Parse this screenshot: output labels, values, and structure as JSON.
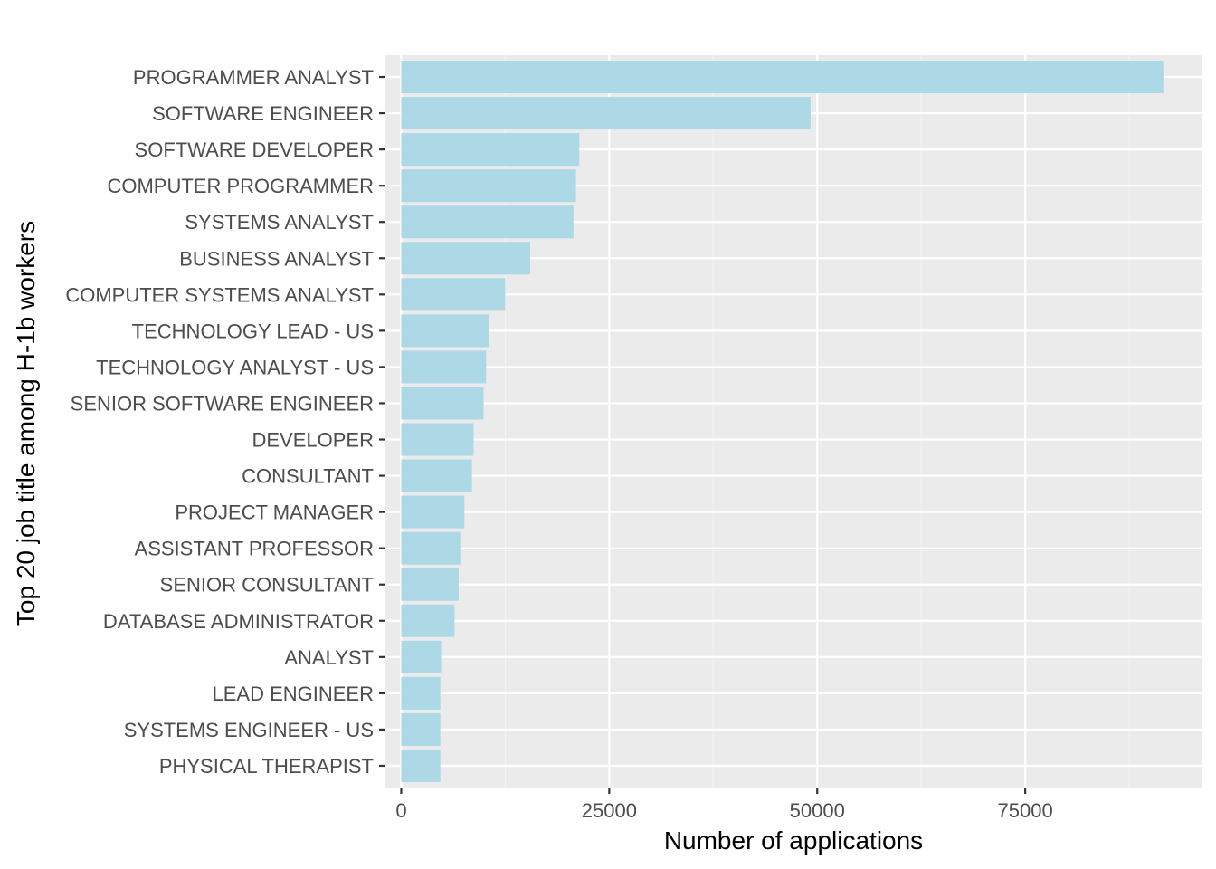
{
  "chart_data": {
    "type": "bar",
    "orientation": "horizontal",
    "title": "",
    "xlabel": "Number of applications",
    "ylabel": "Top 20 job title among H-1b workers",
    "xlim": [
      -1900,
      96300
    ],
    "x_ticks": [
      0,
      25000,
      50000,
      75000
    ],
    "x_tick_labels": [
      "0",
      "25000",
      "50000",
      "75000"
    ],
    "grid": true,
    "legend": "none",
    "categories": [
      "PROGRAMMER ANALYST",
      "SOFTWARE ENGINEER",
      "SOFTWARE DEVELOPER",
      "COMPUTER PROGRAMMER",
      "SYSTEMS ANALYST",
      "BUSINESS ANALYST",
      "COMPUTER SYSTEMS ANALYST",
      "TECHNOLOGY LEAD - US",
      "TECHNOLOGY ANALYST - US",
      "SENIOR SOFTWARE ENGINEER",
      "DEVELOPER",
      "CONSULTANT",
      "PROJECT MANAGER",
      "ASSISTANT PROFESSOR",
      "SENIOR CONSULTANT",
      "DATABASE ADMINISTRATOR",
      "ANALYST",
      "LEAD ENGINEER",
      "SYSTEMS ENGINEER - US",
      "PHYSICAL THERAPIST"
    ],
    "values": [
      91600,
      49200,
      21400,
      21000,
      20700,
      15500,
      12500,
      10500,
      10200,
      9900,
      8700,
      8500,
      7600,
      7100,
      6900,
      6400,
      4800,
      4700,
      4700,
      4700
    ],
    "colors": {
      "bar": "#add8e6",
      "panel": "#ebebeb",
      "grid_major": "#ffffff",
      "grid_minor": "#f4f4f4",
      "tick": "#333333",
      "tick_label": "#4d4d4d",
      "axis_title": "#000000"
    }
  }
}
